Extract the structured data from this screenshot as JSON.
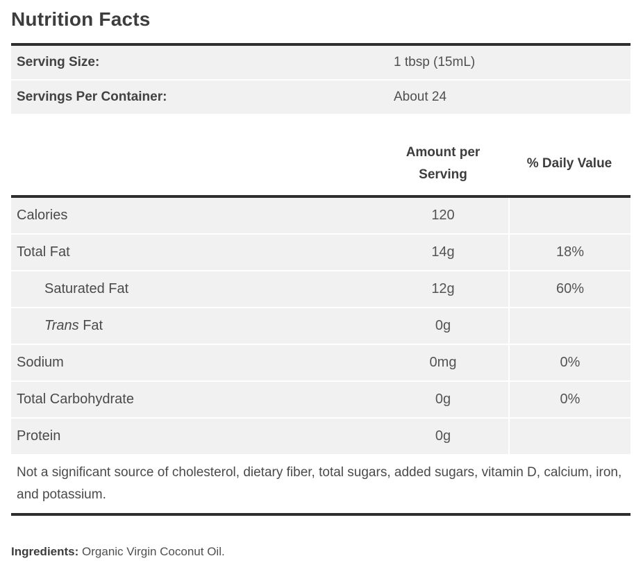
{
  "title": "Nutrition Facts",
  "serving": {
    "rows": [
      {
        "label": "Serving Size:",
        "value": "1 tbsp (15mL)"
      },
      {
        "label": "Servings Per Container:",
        "value": "About 24"
      }
    ]
  },
  "table": {
    "amount_header": "Amount per Serving",
    "daily_value_header": "% Daily Value",
    "rows": [
      {
        "label": "Calories",
        "amount": "120",
        "daily_value": ""
      },
      {
        "label": "Total Fat",
        "amount": "14g",
        "daily_value": "18%"
      },
      {
        "label": "Saturated Fat",
        "amount": "12g",
        "daily_value": "60%"
      },
      {
        "label_italic": "Trans",
        "label_rest": " Fat",
        "amount": "0g",
        "daily_value": ""
      },
      {
        "label": "Sodium",
        "amount": "0mg",
        "daily_value": "0%"
      },
      {
        "label": "Total Carbohydrate",
        "amount": "0g",
        "daily_value": "0%"
      },
      {
        "label": "Protein",
        "amount": "0g",
        "daily_value": ""
      }
    ]
  },
  "footnote": "Not a significant source of cholesterol, dietary fiber, total sugars, added sugars, vitamin D, calcium, iron, and potassium.",
  "ingredients": {
    "label": "Ingredients:",
    "value": " Organic Virgin Coconut Oil."
  },
  "colors": {
    "row_background": "#f1f1f1",
    "divider": "#2e2e2e",
    "heading_text": "#3d3d3d",
    "body_text": "#4a4a4a"
  }
}
